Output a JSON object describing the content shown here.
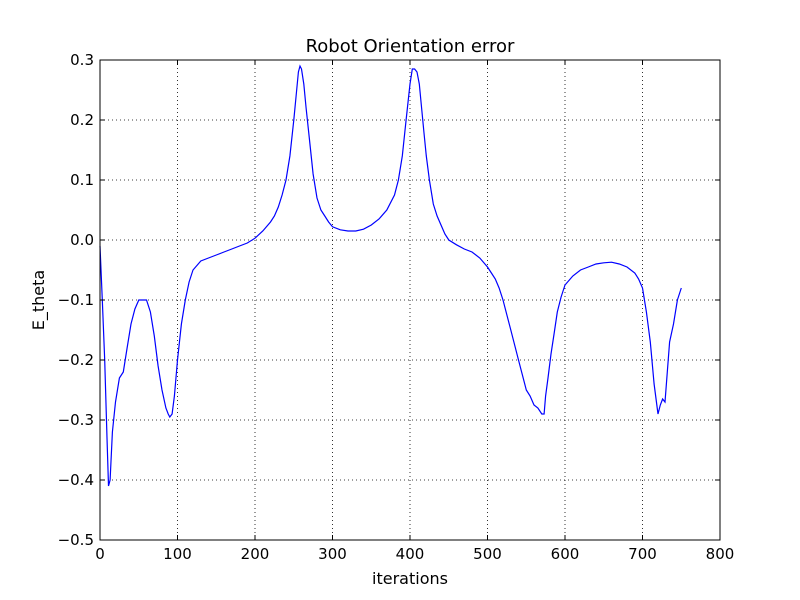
{
  "chart_data": {
    "type": "line",
    "title": "Robot Orientation error",
    "xlabel": "iterations",
    "ylabel": "E_theta",
    "xlim": [
      0,
      800
    ],
    "ylim": [
      -0.5,
      0.3
    ],
    "xticks": [
      0,
      100,
      200,
      300,
      400,
      500,
      600,
      700,
      800
    ],
    "xtick_labels": [
      "0",
      "100",
      "200",
      "300",
      "400",
      "500",
      "600",
      "700",
      "800"
    ],
    "yticks": [
      -0.5,
      -0.4,
      -0.3,
      -0.2,
      -0.1,
      0.0,
      0.1,
      0.2,
      0.3
    ],
    "ytick_labels": [
      "−0.5",
      "−0.4",
      "−0.3",
      "−0.2",
      "−0.1",
      "0.0",
      "0.1",
      "0.2",
      "0.3"
    ],
    "grid": true,
    "grid_style": "dotted",
    "line_color": "#0000ff",
    "series": [
      {
        "x": [
          0,
          3,
          6,
          9,
          11,
          13,
          16,
          20,
          25,
          30,
          35,
          40,
          45,
          50,
          55,
          60,
          65,
          70,
          75,
          80,
          85,
          88,
          90,
          93,
          96,
          100,
          105,
          110,
          115,
          120,
          130,
          140,
          150,
          160,
          170,
          180,
          190,
          200,
          210,
          220,
          225,
          230,
          235,
          240,
          245,
          250,
          253,
          256,
          258,
          260,
          263,
          266,
          270,
          275,
          280,
          285,
          290,
          295,
          300,
          310,
          320,
          330,
          340,
          350,
          360,
          370,
          380,
          385,
          390,
          395,
          400,
          403,
          406,
          409,
          412,
          415,
          418,
          421,
          425,
          430,
          435,
          440,
          445,
          450,
          460,
          470,
          480,
          490,
          500,
          505,
          510,
          515,
          520,
          530,
          540,
          550,
          555,
          560,
          565,
          570,
          573,
          575,
          578,
          582,
          586,
          590,
          595,
          600,
          610,
          620,
          630,
          640,
          650,
          660,
          670,
          680,
          690,
          695,
          700,
          705,
          710,
          715,
          720,
          723,
          726,
          729,
          732,
          735,
          740,
          745,
          750
        ],
        "y": [
          -0.01,
          -0.1,
          -0.2,
          -0.33,
          -0.41,
          -0.4,
          -0.32,
          -0.27,
          -0.23,
          -0.22,
          -0.18,
          -0.14,
          -0.115,
          -0.1,
          -0.1,
          -0.1,
          -0.12,
          -0.16,
          -0.21,
          -0.25,
          -0.28,
          -0.29,
          -0.295,
          -0.29,
          -0.26,
          -0.2,
          -0.14,
          -0.1,
          -0.07,
          -0.05,
          -0.035,
          -0.03,
          -0.025,
          -0.02,
          -0.015,
          -0.01,
          -0.005,
          0.003,
          0.015,
          0.03,
          0.04,
          0.055,
          0.075,
          0.1,
          0.14,
          0.2,
          0.24,
          0.28,
          0.29,
          0.285,
          0.26,
          0.22,
          0.17,
          0.11,
          0.07,
          0.05,
          0.04,
          0.03,
          0.022,
          0.017,
          0.015,
          0.015,
          0.018,
          0.025,
          0.035,
          0.05,
          0.075,
          0.1,
          0.14,
          0.2,
          0.26,
          0.285,
          0.285,
          0.28,
          0.26,
          0.22,
          0.18,
          0.14,
          0.1,
          0.06,
          0.04,
          0.025,
          0.01,
          0.0,
          -0.008,
          -0.015,
          -0.02,
          -0.03,
          -0.045,
          -0.055,
          -0.065,
          -0.08,
          -0.1,
          -0.15,
          -0.2,
          -0.25,
          -0.26,
          -0.275,
          -0.28,
          -0.29,
          -0.29,
          -0.26,
          -0.23,
          -0.19,
          -0.155,
          -0.12,
          -0.095,
          -0.075,
          -0.06,
          -0.05,
          -0.045,
          -0.04,
          -0.038,
          -0.037,
          -0.04,
          -0.045,
          -0.055,
          -0.065,
          -0.08,
          -0.12,
          -0.17,
          -0.24,
          -0.29,
          -0.275,
          -0.265,
          -0.27,
          -0.22,
          -0.17,
          -0.14,
          -0.1,
          -0.08
        ]
      }
    ]
  }
}
